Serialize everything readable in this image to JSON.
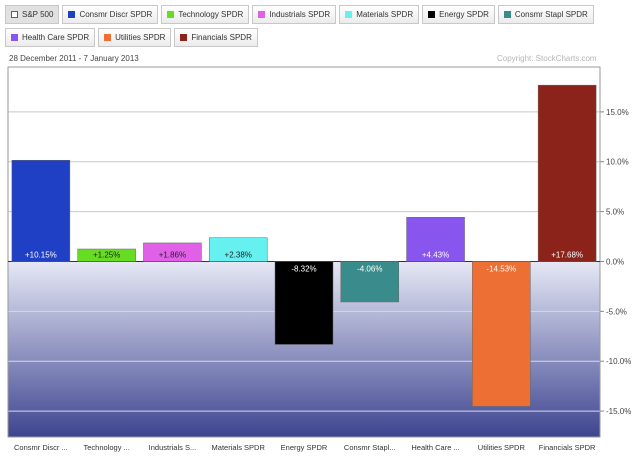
{
  "legend": {
    "items": [
      {
        "label": "S&P 500",
        "color": "#ffffff",
        "border": "#c0392b",
        "active": false
      },
      {
        "label": "Consmr Discr SPDR",
        "color": "#1f3fc4",
        "active": true
      },
      {
        "label": "Technology SPDR",
        "color": "#66dd22",
        "active": true
      },
      {
        "label": "Industrials SPDR",
        "color": "#e060e8",
        "active": true
      },
      {
        "label": "Materials SPDR",
        "color": "#66f0f0",
        "active": true
      },
      {
        "label": "Energy SPDR",
        "color": "#000000",
        "active": true
      },
      {
        "label": "Consmr Stapl SPDR",
        "color": "#3a8c8c",
        "active": true
      },
      {
        "label": "Health Care SPDR",
        "color": "#8855ee",
        "active": true
      },
      {
        "label": "Utilities SPDR",
        "color": "#ee6f33",
        "active": true
      },
      {
        "label": "Financials SPDR",
        "color": "#8b231a",
        "active": true
      }
    ]
  },
  "date_range": "28 December 2011 - 7 January 2013",
  "copyright": "Copyright: StockCharts.com",
  "chart_data": {
    "type": "bar",
    "categories": [
      "Consmr Discr ...",
      "Technology ...",
      "Industrials S...",
      "Materials SPDR",
      "Energy SPDR",
      "Consmr Stapl...",
      "Health Care ...",
      "Utilities SPDR",
      "Financials SPDR"
    ],
    "values": [
      10.15,
      1.25,
      1.86,
      2.38,
      -8.32,
      -4.06,
      4.43,
      -14.53,
      17.68
    ],
    "labels": [
      "+10.15%",
      "+1.25%",
      "+1.86%",
      "+2.38%",
      "-8.32%",
      "-4.06%",
      "+4.43%",
      "-14.53%",
      "+17.68%"
    ],
    "colors": [
      "#1f3fc4",
      "#66dd22",
      "#e060e8",
      "#66f0f0",
      "#000000",
      "#3a8c8c",
      "#8855ee",
      "#ee6f33",
      "#8b231a"
    ],
    "label_colors": [
      "#ffffff",
      "#222222",
      "#222222",
      "#222222",
      "#ffffff",
      "#ffffff",
      "#ffffff",
      "#ffffff",
      "#ffffff"
    ],
    "y_ticks": [
      "15.0%",
      "10.0%",
      "5.0%",
      "0.0%",
      "-5.0%",
      "-10.0%",
      "-15.0%"
    ],
    "y_tick_values": [
      15,
      10,
      5,
      0,
      -5,
      -10,
      -15
    ],
    "ylim": [
      -17.6,
      19.5
    ],
    "grid": true,
    "legend_position": "top"
  }
}
